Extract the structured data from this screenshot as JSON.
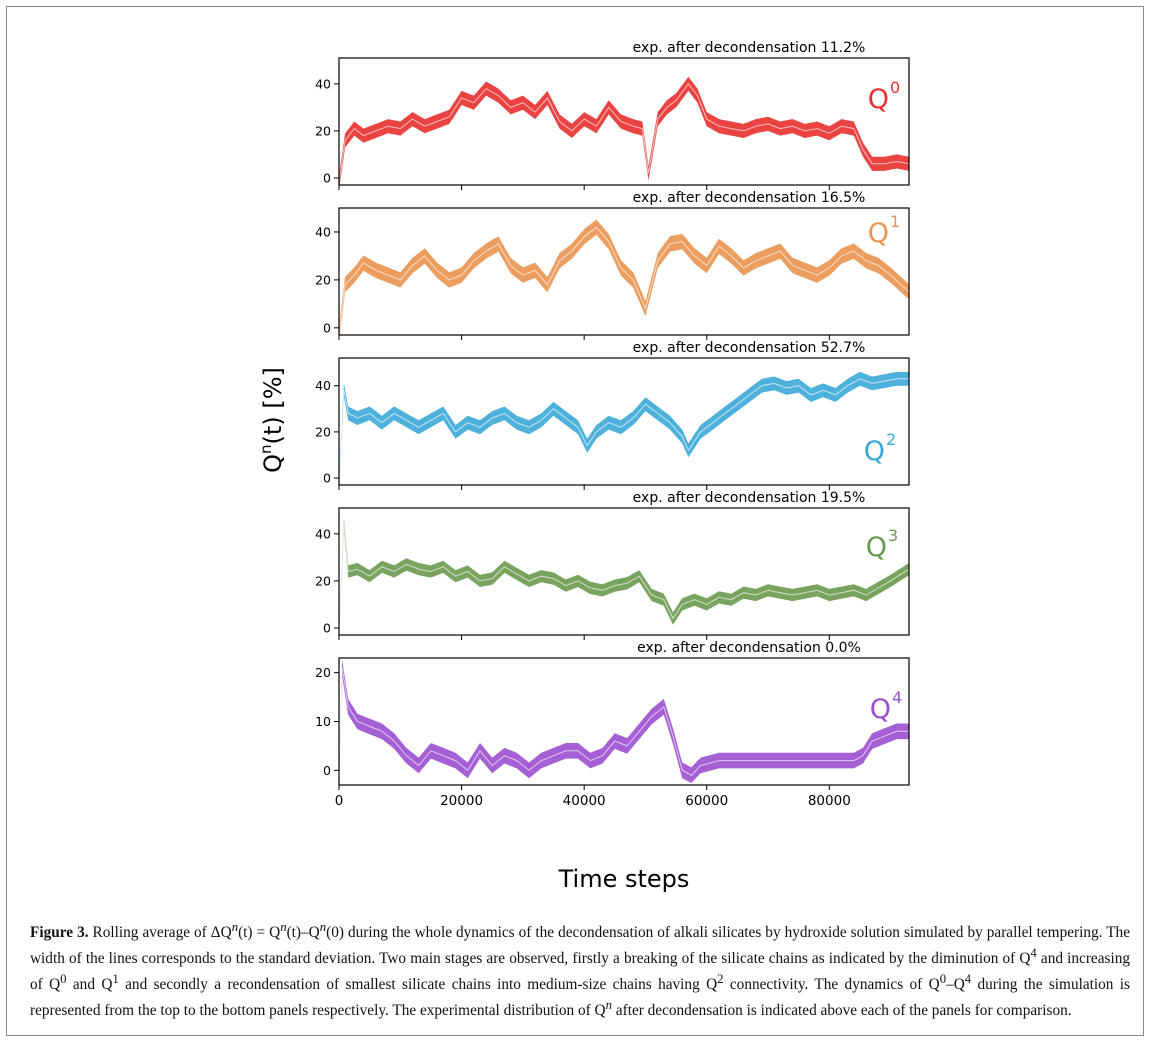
{
  "figure": {
    "ylabel_main": "Q",
    "ylabel_sup": "n",
    "ylabel_rest": "(t) [%]",
    "xlabel": "Time steps",
    "x_ticks": [
      "0",
      "20000",
      "40000",
      "60000",
      "80000"
    ]
  },
  "caption": {
    "label": "Figure 3.",
    "part1": " Rolling average of ΔQ",
    "part2": "(t) = Q",
    "part3": "(t)–Q",
    "part4": "(0) during the whole dynamics of the decondensation of alkali silicates by hydroxide solution simulated by parallel tempering. The width of the lines corresponds to the standard deviation. Two main stages are observed, firstly a breaking of the silicate chains as indicated by the diminution of Q",
    "part5": " and increasing of Q",
    "part6": " and Q",
    "part7": " and secondly a recondensation of smallest silicate chains into medium-size chains having Q",
    "part8": " connectivity. The dynamics of Q",
    "part9": "–Q",
    "part10": " during the simulation is represented from the top to the bottom panels respectively. The experimental distribution of Q",
    "part11": " after decondensation is indicated above each of the panels for comparison.",
    "sup_n": "n",
    "sup_0": "0",
    "sup_1": "1",
    "sup_2": "2",
    "sup_4": "4"
  },
  "chart_data": [
    {
      "type": "line",
      "title": "exp. after decondensation 11.2%",
      "series_label": "Q",
      "series_sup": "0",
      "color": "#e8302e",
      "xlim": [
        0,
        93000
      ],
      "ylim": [
        -3,
        51
      ],
      "y_ticks": [
        0,
        20,
        40
      ],
      "x": [
        0,
        1000,
        2500,
        4000,
        6000,
        8000,
        10000,
        12000,
        14000,
        16000,
        18000,
        20000,
        22000,
        24000,
        26000,
        28000,
        30000,
        32000,
        34000,
        36000,
        38000,
        40000,
        42000,
        44000,
        46000,
        48000,
        49500,
        50500,
        52000,
        53500,
        55000,
        57000,
        58500,
        60000,
        62000,
        64000,
        66000,
        68000,
        70000,
        72000,
        74000,
        76000,
        78000,
        80000,
        82000,
        84000,
        85500,
        87000,
        89000,
        91000,
        93000
      ],
      "y": [
        -2,
        16,
        21,
        18,
        20,
        22,
        21,
        25,
        22,
        24,
        26,
        34,
        32,
        38,
        35,
        30,
        32,
        28,
        34,
        24,
        20,
        25,
        22,
        30,
        24,
        22,
        21,
        2,
        25,
        30,
        33,
        40,
        35,
        25,
        22,
        21,
        20,
        22,
        23,
        21,
        22,
        20,
        21,
        19,
        22,
        21,
        12,
        6,
        6,
        7,
        6
      ],
      "band": 3.0
    },
    {
      "type": "line",
      "title": "exp. after decondensation 16.5%",
      "series_label": "Q",
      "series_sup": "1",
      "color": "#ea9350",
      "xlim": [
        0,
        93000
      ],
      "ylim": [
        -3,
        50
      ],
      "y_ticks": [
        0,
        20,
        40
      ],
      "x": [
        0,
        1000,
        2500,
        4000,
        6000,
        8000,
        10000,
        12000,
        14000,
        16000,
        18000,
        20000,
        22000,
        24000,
        26000,
        28000,
        30000,
        32000,
        34000,
        36000,
        38000,
        40000,
        42000,
        44000,
        46000,
        48000,
        50000,
        52000,
        54000,
        56000,
        58000,
        60000,
        62000,
        64000,
        66000,
        68000,
        70000,
        72000,
        74000,
        76000,
        78000,
        80000,
        82000,
        84000,
        86000,
        88000,
        90000,
        93000
      ],
      "y": [
        -2,
        18,
        22,
        27,
        24,
        22,
        20,
        26,
        30,
        24,
        20,
        22,
        28,
        32,
        35,
        26,
        22,
        24,
        18,
        28,
        32,
        38,
        42,
        36,
        25,
        20,
        8,
        28,
        35,
        36,
        30,
        26,
        34,
        30,
        25,
        28,
        30,
        32,
        26,
        24,
        22,
        25,
        30,
        32,
        28,
        26,
        22,
        15
      ],
      "band": 3.2
    },
    {
      "type": "line",
      "title": "exp. after decondensation 52.7%",
      "series_label": "Q",
      "series_sup": "2",
      "color": "#3aa8d8",
      "xlim": [
        0,
        93000
      ],
      "ylim": [
        -3,
        52
      ],
      "y_ticks": [
        0,
        20,
        40
      ],
      "x": [
        0,
        800,
        1500,
        3000,
        5000,
        7000,
        9000,
        11000,
        13000,
        15000,
        17000,
        19000,
        21000,
        23000,
        25000,
        27000,
        29000,
        31000,
        33000,
        35000,
        37000,
        39000,
        40500,
        42000,
        44000,
        46000,
        48000,
        50000,
        52000,
        54000,
        56000,
        57000,
        59000,
        61000,
        63000,
        65000,
        67000,
        69000,
        71000,
        73000,
        75000,
        77000,
        79000,
        81000,
        83000,
        85000,
        87000,
        89000,
        91000,
        93000
      ],
      "y": [
        -2,
        38,
        28,
        26,
        28,
        24,
        28,
        25,
        22,
        25,
        28,
        20,
        24,
        22,
        26,
        28,
        24,
        22,
        25,
        30,
        26,
        22,
        14,
        20,
        24,
        22,
        26,
        32,
        28,
        24,
        18,
        12,
        20,
        24,
        28,
        32,
        36,
        40,
        41,
        39,
        40,
        36,
        38,
        36,
        40,
        43,
        41,
        42,
        43,
        43
      ],
      "band": 3.0
    },
    {
      "type": "line",
      "title": "exp. after decondensation 19.5%",
      "series_label": "Q",
      "series_sup": "3",
      "color": "#6a9a4e",
      "xlim": [
        0,
        93000
      ],
      "ylim": [
        -3,
        51
      ],
      "y_ticks": [
        0,
        20,
        40
      ],
      "x": [
        0,
        800,
        1500,
        3000,
        5000,
        7000,
        9000,
        11000,
        13000,
        15000,
        17000,
        19000,
        21000,
        23000,
        25000,
        27000,
        29000,
        31000,
        33000,
        35000,
        37000,
        39000,
        41000,
        43000,
        45000,
        47000,
        49000,
        51000,
        53000,
        54500,
        56000,
        58000,
        60000,
        62000,
        64000,
        66000,
        68000,
        70000,
        72000,
        74000,
        76000,
        78000,
        80000,
        82000,
        84000,
        86000,
        88000,
        90000,
        93000
      ],
      "y": [
        -2,
        44,
        24,
        25,
        22,
        26,
        24,
        27,
        25,
        24,
        26,
        22,
        24,
        20,
        21,
        26,
        23,
        20,
        22,
        21,
        18,
        20,
        17,
        16,
        18,
        19,
        22,
        14,
        12,
        4,
        10,
        12,
        10,
        13,
        12,
        15,
        14,
        16,
        15,
        14,
        15,
        16,
        14,
        15,
        16,
        14,
        17,
        20,
        25
      ],
      "band": 2.6
    },
    {
      "type": "line",
      "title": "exp. after decondensation 0.0%",
      "series_label": "Q",
      "series_sup": "4",
      "color": "#9b4fd0",
      "xlim": [
        0,
        93000
      ],
      "ylim": [
        -3,
        23
      ],
      "y_ticks": [
        0,
        10,
        20
      ],
      "x": [
        0,
        500,
        1500,
        3000,
        5000,
        7000,
        9000,
        11000,
        13000,
        15000,
        17000,
        19000,
        21000,
        23000,
        25000,
        27000,
        29000,
        31000,
        33000,
        35000,
        37000,
        39000,
        41000,
        43000,
        45000,
        47000,
        49000,
        51000,
        53000,
        54500,
        56000,
        57500,
        59000,
        62000,
        65000,
        68000,
        71000,
        74000,
        77000,
        80000,
        82000,
        84000,
        85500,
        87000,
        89000,
        91000,
        93000
      ],
      "y": [
        -2,
        21,
        13,
        10,
        9,
        8,
        6,
        3,
        1,
        4,
        3,
        2,
        0,
        4,
        1,
        3,
        2,
        0,
        2,
        3,
        4,
        4,
        2,
        3,
        6,
        5,
        8,
        11,
        13,
        7,
        0,
        -1,
        1,
        2,
        2,
        2,
        2,
        2,
        2,
        2,
        2,
        2,
        3,
        6,
        7,
        8,
        8
      ],
      "band": 1.6
    }
  ]
}
